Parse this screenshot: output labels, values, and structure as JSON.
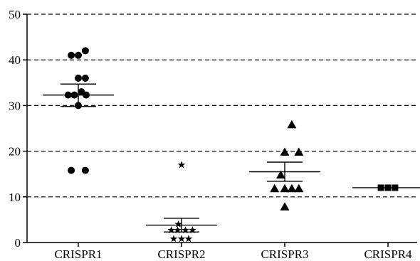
{
  "chart_data": {
    "type": "scatter",
    "title": "",
    "xlabel": "",
    "ylabel": "",
    "ylim": [
      0,
      50
    ],
    "yticks": [
      0,
      10,
      20,
      30,
      40,
      50
    ],
    "grid": "dashed horizontal",
    "legend": "none",
    "categories": [
      "CRISPR1",
      "CRISPR2",
      "CRISPR3",
      "CRISPR4"
    ],
    "series": [
      {
        "category": "CRISPR1",
        "marker": "circle",
        "points": [
          {
            "offset": -0.45,
            "y": 41
          },
          {
            "offset": 0.0,
            "y": 41
          },
          {
            "offset": 0.45,
            "y": 42
          },
          {
            "offset": 0.0,
            "y": 36
          },
          {
            "offset": 0.45,
            "y": 36
          },
          {
            "offset": -0.65,
            "y": 32.3
          },
          {
            "offset": -0.25,
            "y": 32.3
          },
          {
            "offset": 0.2,
            "y": 33
          },
          {
            "offset": 0.5,
            "y": 32.3
          },
          {
            "offset": 0.0,
            "y": 30
          },
          {
            "offset": -0.45,
            "y": 15.8
          },
          {
            "offset": 0.45,
            "y": 15.8
          }
        ],
        "mean": 32.3,
        "error_upper": 34.7,
        "error_lower": 29.8
      },
      {
        "category": "CRISPR2",
        "marker": "star",
        "points": [
          {
            "offset": 0.0,
            "y": 17
          },
          {
            "offset": -0.2,
            "y": 4
          },
          {
            "offset": -0.65,
            "y": 2.7
          },
          {
            "offset": -0.25,
            "y": 2.7
          },
          {
            "offset": 0.25,
            "y": 2.7
          },
          {
            "offset": 0.7,
            "y": 2.7
          },
          {
            "offset": -0.5,
            "y": 0.8
          },
          {
            "offset": 0.0,
            "y": 0.8
          },
          {
            "offset": 0.45,
            "y": 0.8
          }
        ],
        "mean": 3.8,
        "error_upper": 5.3,
        "error_lower": 2.3
      },
      {
        "category": "CRISPR3",
        "marker": "triangle",
        "points": [
          {
            "offset": 0.45,
            "y": 25.8
          },
          {
            "offset": 0.0,
            "y": 19.8
          },
          {
            "offset": 0.9,
            "y": 19.8
          },
          {
            "offset": -0.25,
            "y": 14.8
          },
          {
            "offset": -0.65,
            "y": 11.8
          },
          {
            "offset": 0.0,
            "y": 11.8
          },
          {
            "offset": 0.45,
            "y": 11.8
          },
          {
            "offset": 0.9,
            "y": 11.8
          },
          {
            "offset": 0.0,
            "y": 7.8
          }
        ],
        "mean": 15.5,
        "error_upper": 17.6,
        "error_lower": 13.4
      },
      {
        "category": "CRISPR4",
        "marker": "square",
        "points": [
          {
            "offset": -0.45,
            "y": 12
          },
          {
            "offset": 0.0,
            "y": 12
          },
          {
            "offset": 0.45,
            "y": 12
          }
        ],
        "mean": 12,
        "error_upper": 12,
        "error_lower": 12
      }
    ]
  }
}
